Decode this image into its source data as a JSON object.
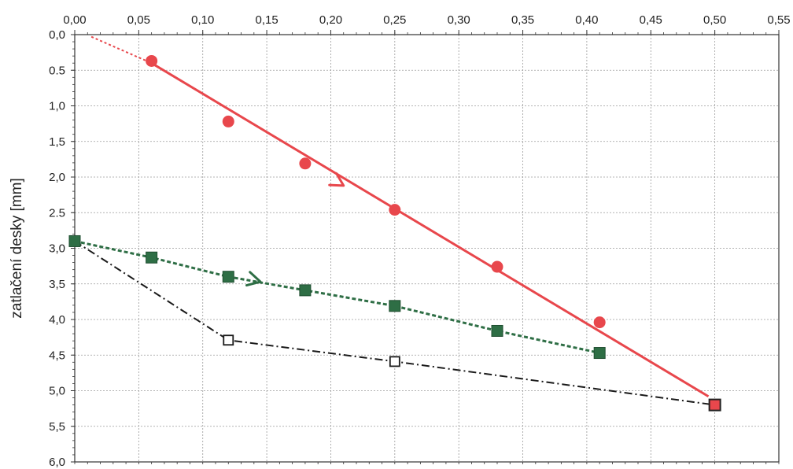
{
  "chart_data": {
    "type": "line",
    "title": "",
    "xlabel": "",
    "ylabel": "zatlačení desky [mm]",
    "x_axis_position": "top",
    "y_axis_inverted": true,
    "xlim": [
      0,
      0.55
    ],
    "ylim": [
      0,
      6
    ],
    "x_ticks": [
      0,
      0.05,
      0.1,
      0.15,
      0.2,
      0.25,
      0.3,
      0.35,
      0.4,
      0.45,
      0.5,
      0.55
    ],
    "x_tick_labels": [
      "0,00",
      "0,05",
      "0,10",
      "0,15",
      "0,20",
      "0,25",
      "0,30",
      "0,35",
      "0,40",
      "0,45",
      "0,50",
      "0,55"
    ],
    "y_ticks": [
      0,
      0.5,
      1,
      1.5,
      2,
      2.5,
      3,
      3.5,
      4,
      4.5,
      5,
      5.5,
      6
    ],
    "y_tick_labels": [
      "0,0",
      "0.5",
      "1,0",
      "1,5",
      "2,0",
      "2.5",
      "3,0",
      "3,5",
      "4,0",
      "4,5",
      "5,0",
      "5,5",
      "6,0"
    ],
    "grid": true,
    "series": [
      {
        "style": "red-circles-with-linear-fit",
        "color": "#e8474c",
        "x": [
          0.06,
          0.12,
          0.18,
          0.25,
          0.33,
          0.41
        ],
        "y": [
          0.37,
          1.22,
          1.81,
          2.46,
          3.26,
          4.04
        ],
        "fit_line": {
          "x": [
            0.06,
            0.495
          ],
          "y": [
            0.4,
            5.08
          ]
        },
        "fit_extension": {
          "x": [
            0.013,
            0.06
          ],
          "y": [
            0.03,
            0.4
          ]
        },
        "arrow_at": {
          "x": 0.21,
          "y": 2.12
        }
      },
      {
        "style": "green-squares-dashed",
        "color": "#2e6e45",
        "x": [
          0.0,
          0.06,
          0.12,
          0.18,
          0.25,
          0.33,
          0.41
        ],
        "y": [
          2.9,
          3.13,
          3.4,
          3.59,
          3.81,
          4.16,
          4.47
        ],
        "arrow_at": {
          "x": 0.145,
          "y": 3.47
        }
      },
      {
        "style": "black-open-squares-dashdot",
        "color": "#1a1a1a",
        "x": [
          0.0,
          0.12,
          0.25,
          0.5
        ],
        "y": [
          2.9,
          4.29,
          4.59,
          5.2
        ],
        "open_markers_at": [
          1,
          2
        ],
        "end_marker": {
          "x": 0.5,
          "y": 5.2,
          "fill": "#e8474c"
        }
      }
    ]
  }
}
